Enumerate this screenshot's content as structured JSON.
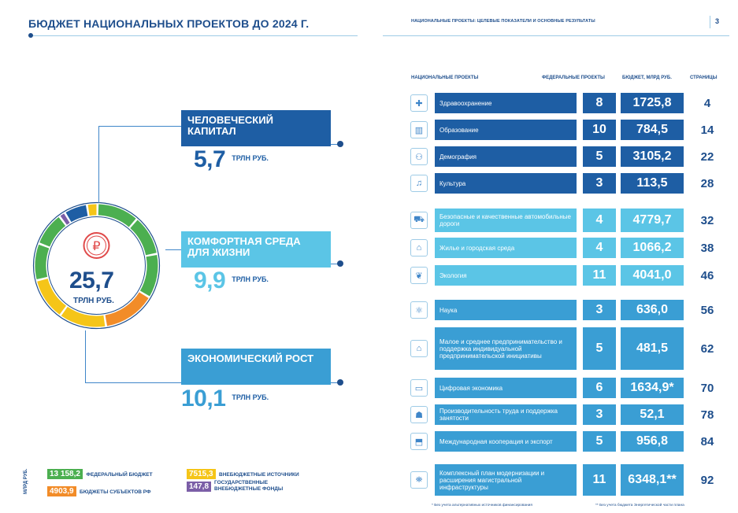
{
  "left": {
    "title": "БЮДЖЕТ НАЦИОНАЛЬНЫХ ПРОЕКТОВ ДО 2024 Г.",
    "total": {
      "value": "25,7",
      "unit": "ТРЛН РУБ."
    },
    "categories": [
      {
        "label": "ЧЕЛОВЕЧЕСКИЙ КАПИТАЛ",
        "amount": "5,7",
        "unit": "ТРЛН РУБ."
      },
      {
        "label": "КОМФОРТНАЯ СРЕДА ДЛЯ ЖИЗНИ",
        "amount": "9,9",
        "unit": "ТРЛН РУБ."
      },
      {
        "label": "ЭКОНОМИЧЕСКИЙ РОСТ",
        "amount": "10,1",
        "unit": "ТРЛН РУБ."
      }
    ],
    "legend_unit": "МЛРД РУБ.",
    "legend": [
      {
        "value": "13 158,2",
        "label": "ФЕДЕРАЛЬНЫЙ БЮДЖЕТ",
        "color": "#4caf50"
      },
      {
        "value": "7515,3",
        "label": "ВНЕБЮДЖЕТНЫЕ ИСТОЧНИКИ",
        "color": "#f5c518"
      },
      {
        "value": "4903,9",
        "label": "БЮДЖЕТЫ СУБЪЕКТОВ РФ",
        "color": "#f28c28"
      },
      {
        "value": "147,8",
        "label": "ГОСУДАРСТВЕННЫЕ ВНЕБЮДЖЕТНЫЕ ФОНДЫ",
        "color": "#7b5ea7"
      }
    ]
  },
  "right": {
    "header": "НАЦИОНАЛЬНЫЕ ПРОЕКТЫ: ЦЕЛЕВЫЕ ПОКАЗАТЕЛИ И ОСНОВНЫЕ РЕЗУЛЬТАТЫ",
    "page_number": "3",
    "columns": [
      "НАЦИОНАЛЬНЫЕ ПРОЕКТЫ",
      "ФЕДЕРАЛЬНЫЕ ПРОЕКТЫ",
      "БЮДЖЕТ, МЛРД РУБ.",
      "СТРАНИЦЫ"
    ],
    "rows": [
      {
        "name": "Здравоохранение",
        "fed": "8",
        "budget": "1725,8",
        "page": "4",
        "group": 1,
        "icon": "medical-cross-icon",
        "glyph": "✚"
      },
      {
        "name": "Образование",
        "fed": "10",
        "budget": "784,5",
        "page": "14",
        "group": 1,
        "icon": "books-icon",
        "glyph": "▥"
      },
      {
        "name": "Демография",
        "fed": "5",
        "budget": "3105,2",
        "page": "22",
        "group": 1,
        "icon": "stroller-icon",
        "glyph": "⚇"
      },
      {
        "name": "Культура",
        "fed": "3",
        "budget": "113,5",
        "page": "28",
        "group": 1,
        "icon": "lyre-icon",
        "glyph": "♫"
      },
      {
        "name": "Безопасные и качественные автомобильные дороги",
        "fed": "4",
        "budget": "4779,7",
        "page": "32",
        "group": 2,
        "icon": "road-icon",
        "glyph": "⛟"
      },
      {
        "name": "Жилье и городская среда",
        "fed": "4",
        "budget": "1066,2",
        "page": "38",
        "group": 2,
        "icon": "house-icon",
        "glyph": "⌂"
      },
      {
        "name": "Экология",
        "fed": "11",
        "budget": "4041,0",
        "page": "46",
        "group": 2,
        "icon": "leaf-hand-icon",
        "glyph": "❦"
      },
      {
        "name": "Наука",
        "fed": "3",
        "budget": "636,0",
        "page": "56",
        "group": 3,
        "icon": "atom-icon",
        "glyph": "⚛"
      },
      {
        "name": "Малое и среднее предпринимательство и поддержка индивидуальной предпринимательской инициативы",
        "fed": "5",
        "budget": "481,5",
        "page": "62",
        "group": 3,
        "icon": "shop-icon",
        "glyph": "⌂"
      },
      {
        "name": "Цифровая экономика",
        "fed": "6",
        "budget": "1634,9*",
        "page": "70",
        "group": 3,
        "icon": "laptop-icon",
        "glyph": "▭"
      },
      {
        "name": "Производительность труда и поддержка занятости",
        "fed": "3",
        "budget": "52,1",
        "page": "78",
        "group": 3,
        "icon": "worker-icon",
        "glyph": "☗"
      },
      {
        "name": "Международная кооперация и экспорт",
        "fed": "5",
        "budget": "956,8",
        "page": "84",
        "group": 3,
        "icon": "cargo-icon",
        "glyph": "⬒"
      },
      {
        "name": "Комплексный план модернизации и расширения магистральной инфраструктуры",
        "fed": "11",
        "budget": "6348,1**",
        "page": "92",
        "group": 3,
        "icon": "infrastructure-icon",
        "glyph": "⛯"
      }
    ],
    "footnote1": "* Без учета альтернативных источников финансирования",
    "footnote2": "** Без учета бюджета Энергетической части плана"
  },
  "colors": {
    "group1": "#1e5ea4",
    "group2": "#5bc5e6",
    "group3": "#3a9ed4"
  }
}
